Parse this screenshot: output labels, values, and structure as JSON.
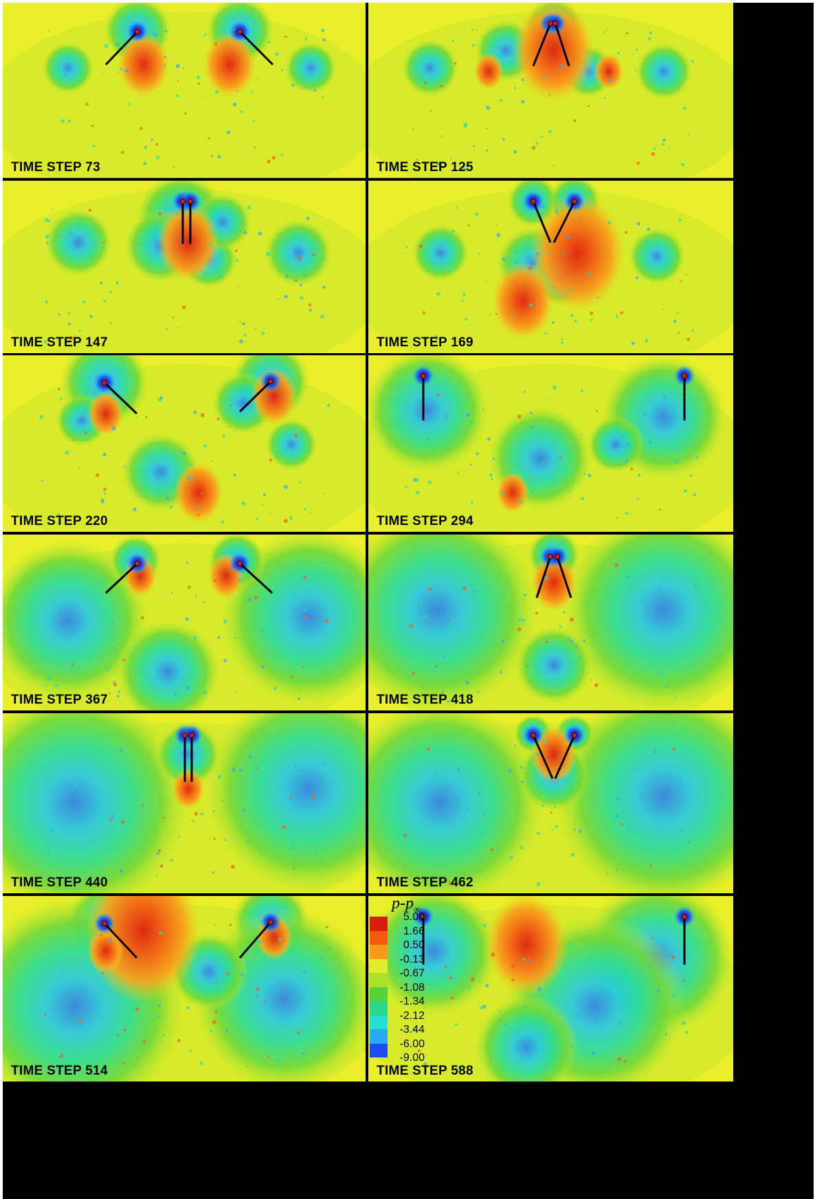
{
  "panels": [
    {
      "label": "TIME STEP 73"
    },
    {
      "label": "TIME STEP 125"
    },
    {
      "label": "TIME STEP 147"
    },
    {
      "label": "TIME STEP 169"
    },
    {
      "label": "TIME STEP 220"
    },
    {
      "label": "TIME STEP 294"
    },
    {
      "label": "TIME STEP 367"
    },
    {
      "label": "TIME STEP 418"
    },
    {
      "label": "TIME STEP 440"
    },
    {
      "label": "TIME STEP 462"
    },
    {
      "label": "TIME STEP 514"
    },
    {
      "label": "TIME STEP 588"
    }
  ],
  "legend": {
    "symbol": "p-p",
    "symbol_sub": "∞",
    "levels": [
      "5.00",
      "1.66",
      "0.50",
      "-0.13",
      "-0.67",
      "-1.08",
      "-1.34",
      "-2.12",
      "-3.44",
      "-6.00",
      "-9.00"
    ],
    "colors": [
      "#d91d0f",
      "#f25a12",
      "#f79a1a",
      "#e3eb2a",
      "#a8e02a",
      "#55d43a",
      "#2bd88a",
      "#25e0d0",
      "#2aa8f0",
      "#1e4ef0",
      "#1010b0"
    ]
  },
  "colors": {
    "background": "#e9ef2a",
    "border": "#000000",
    "high": "#e8301a",
    "low": "#1a3af0"
  }
}
